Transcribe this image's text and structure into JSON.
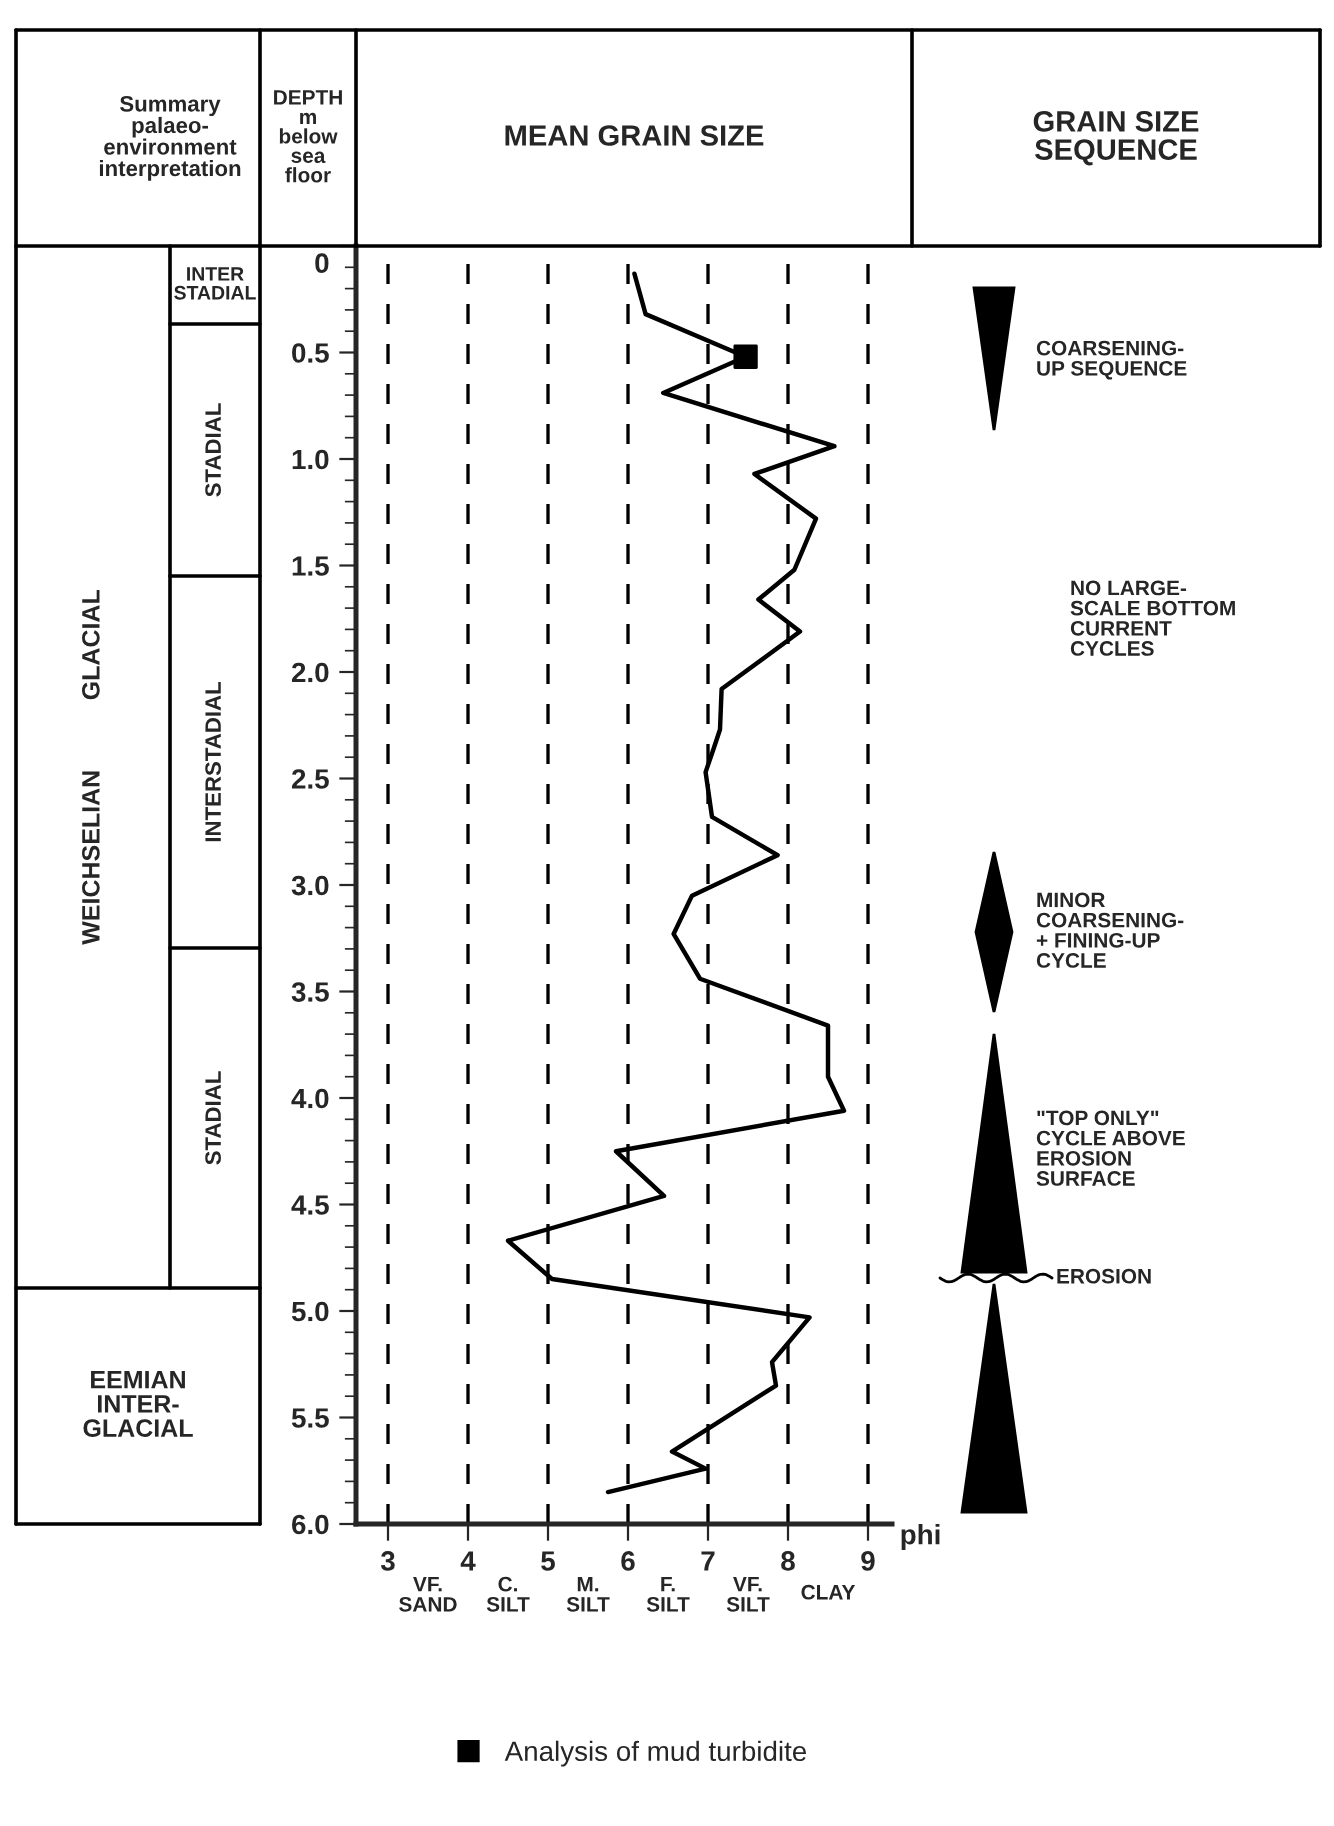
{
  "chart_data": {
    "type": "line",
    "title": "MEAN GRAIN SIZE",
    "ylabel": "DEPTH\nm\nbelow\nsea\nfloor",
    "xlabel": "phi",
    "series": [
      {
        "color": "#000000",
        "values": [
          0.13,
          0.32,
          0.52,
          0.69,
          0.94,
          1.07,
          1.28,
          1.52,
          1.66,
          1.81,
          2.08,
          2.27,
          2.36,
          2.47,
          2.68,
          2.86,
          3.05,
          3.23,
          3.44,
          3.66,
          3.9,
          4.06,
          4.25,
          4.46,
          4.67,
          4.85,
          5.03,
          5.24,
          5.35,
          5.66,
          5.74,
          5.85
        ],
        "x": [
          6.08,
          6.22,
          7.47,
          6.44,
          8.58,
          7.58,
          8.35,
          8.08,
          7.63,
          8.15,
          7.17,
          7.15,
          7.07,
          6.97,
          7.05,
          7.87,
          6.8,
          6.57,
          6.9,
          8.5,
          8.5,
          8.7,
          5.85,
          6.45,
          4.5,
          5.05,
          8.27,
          7.8,
          7.85,
          6.55,
          6.97,
          5.75
        ]
      },
      {
        "type": "scatter",
        "name": "Analysis of mud turbidite",
        "color": "#000000",
        "marker": "square",
        "values": [
          0.52
        ],
        "x": [
          7.47
        ]
      }
    ],
    "xlim": [
      2.6,
      9.3
    ],
    "xticks": [
      3,
      4,
      5,
      6,
      7,
      8,
      9
    ],
    "ylim": [
      6.0,
      0.0
    ],
    "yticks": [
      0,
      {
        "value": 0.5,
        "label": "0.5"
      },
      {
        "value": 1,
        "label": "1.0"
      },
      {
        "value": 1.5,
        "label": "1.5"
      },
      {
        "value": 2,
        "label": "2.0"
      },
      {
        "value": 2.5,
        "label": "2.5"
      },
      {
        "value": 3,
        "label": "3.0"
      },
      {
        "value": 3.5,
        "label": "3.5"
      },
      {
        "value": 4,
        "label": "4.0"
      },
      {
        "value": 4.5,
        "label": "4.5"
      },
      {
        "value": 5,
        "label": "5.0"
      },
      {
        "value": 5.5,
        "label": "5.5"
      },
      {
        "value": 6,
        "label": "6.0"
      }
    ],
    "grid": "x",
    "legend": "bottom",
    "annotations": [
      "Summary\npalaeo-\nenvironment\ninterpretation",
      "GRAIN SIZE\nSEQUENCE",
      "NO LARGE-\nSCALE BOTTOM\nCURRENT\nCYCLES",
      "VF.\nSAND",
      "C.\nSILT",
      "M.\nSILT",
      "F.\nSILT",
      "VF.\nSILT",
      "CLAY",
      "WEICHSELIAN          GLACIAL",
      "EEMIAN\nINTER-\nGLACIAL",
      "INTER\nSTADIAL",
      "STADIAL",
      "INTERSTADIAL",
      "STADIAL",
      "COARSENING-\nUP SEQUENCE",
      "MINOR\nCOARSENING-\n+ FINING-UP\nCYCLE",
      "\"TOP ONLY\"\nCYCLE ABOVE\nEROSION\nSURFACE",
      "EROSION"
    ]
  }
}
